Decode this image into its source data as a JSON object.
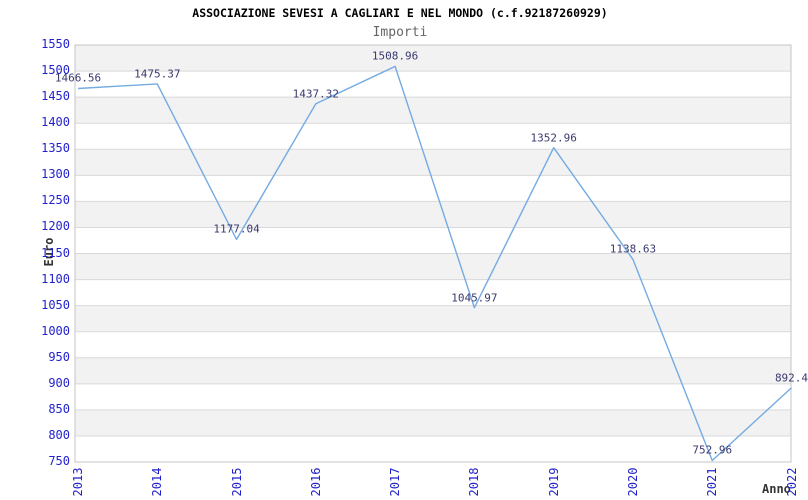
{
  "chart_data": {
    "type": "line",
    "title": "ASSOCIAZIONE SEVESI A CAGLIARI E NEL MONDO (c.f.92187260929)",
    "subtitle": "Importi",
    "xlabel": "Anno",
    "ylabel": "Euro",
    "categories": [
      "2013",
      "2014",
      "2015",
      "2016",
      "2017",
      "2018",
      "2019",
      "2020",
      "2021",
      "2022"
    ],
    "series": [
      {
        "name": "Importi",
        "values": [
          1466.56,
          1475.37,
          1177.04,
          1437.32,
          1508.96,
          1045.97,
          1352.96,
          1138.63,
          752.96,
          892.4
        ],
        "point_labels": [
          "1466.56",
          "1475.37",
          "1177.04",
          "1437.32",
          "1508.96",
          "1045.97",
          "1352.96",
          "1138.63",
          "752.96",
          "892.4"
        ]
      }
    ],
    "ylim": [
      750,
      1550
    ],
    "ytick_step": 50,
    "ytick_labels": [
      "1550",
      "1500",
      "1450",
      "1400",
      "1350",
      "1300",
      "1250",
      "1200",
      "1150",
      "1100",
      "1050",
      "1000",
      "950",
      "900",
      "850",
      "800",
      "750"
    ],
    "grid": "horizontal-bands",
    "legend": "none",
    "colors": {
      "line": "#74abe2",
      "tick_text": "#2222cc",
      "data_label": "#3a3a70",
      "band_gray": "#f2f2f2",
      "gridline": "#d9d9d9",
      "plot_border": "#c6c6c6",
      "title": "#000000",
      "subtitle": "#666666",
      "axis_title": "#333333",
      "background": "#ffffff"
    }
  }
}
